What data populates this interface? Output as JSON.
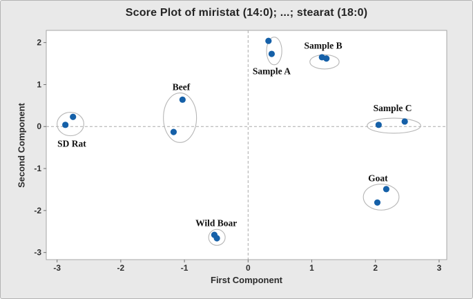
{
  "window": {
    "background": "#e9e9e9",
    "border_color": "#b3b3b3",
    "plot_background": "#ffffff",
    "plot_border_color": "#a6a6a6"
  },
  "chart_data": {
    "type": "scatter",
    "title": "Score Plot of miristat (14:0); ...; stearat (18:0)",
    "xlabel": "First Component",
    "ylabel": "Second Component",
    "xlim": [
      -3.17,
      3.12
    ],
    "ylim": [
      -3.17,
      2.29
    ],
    "x_ticks": [
      -3,
      -2,
      -1,
      0,
      1,
      2,
      3
    ],
    "y_ticks": [
      2,
      1,
      0,
      -1,
      -2,
      -3
    ],
    "grid": false,
    "legend": "none",
    "reference_lines": {
      "x": 0,
      "y": 0,
      "style": "dashed"
    },
    "point_color": "#1560a8",
    "ellipse_color": "#b5b5b5",
    "tick_color": "#707070",
    "tick_label_color": "#2e2e2e",
    "group_label_color": "#111111",
    "groups": [
      {
        "label": "SD Rat",
        "points": [
          [
            -2.75,
            0.23
          ],
          [
            -2.87,
            0.04
          ]
        ],
        "ellipse": {
          "cx": -2.79,
          "cy": 0.06,
          "rx": 0.21,
          "ry": 0.28
        },
        "label_pos": [
          -2.77,
          -0.41
        ]
      },
      {
        "label": "Beef",
        "points": [
          [
            -1.03,
            0.64
          ],
          [
            -1.17,
            -0.13
          ]
        ],
        "ellipse": {
          "cx": -1.07,
          "cy": 0.21,
          "rx": 0.26,
          "ry": 0.59
        },
        "label_pos": [
          -1.05,
          0.94
        ]
      },
      {
        "label": "Sample A",
        "points": [
          [
            0.32,
            2.04
          ],
          [
            0.37,
            1.73
          ]
        ],
        "ellipse": {
          "cx": 0.41,
          "cy": 1.8,
          "rx": 0.12,
          "ry": 0.33
        },
        "label_pos": [
          0.37,
          1.32
        ]
      },
      {
        "label": "Sample B",
        "points": [
          [
            1.16,
            1.65
          ],
          [
            1.23,
            1.62
          ]
        ],
        "ellipse": {
          "cx": 1.2,
          "cy": 1.54,
          "rx": 0.23,
          "ry": 0.17
        },
        "label_pos": [
          1.18,
          1.93
        ]
      },
      {
        "label": "Sample C",
        "points": [
          [
            2.05,
            0.04
          ],
          [
            2.46,
            0.12
          ]
        ],
        "ellipse": {
          "cx": 2.29,
          "cy": 0.02,
          "rx": 0.42,
          "ry": 0.18
        },
        "label_pos": [
          2.27,
          0.44
        ]
      },
      {
        "label": "Goat",
        "points": [
          [
            2.17,
            -1.49
          ],
          [
            2.03,
            -1.81
          ]
        ],
        "ellipse": {
          "cx": 2.09,
          "cy": -1.68,
          "rx": 0.28,
          "ry": 0.31
        },
        "label_pos": [
          2.04,
          -1.23
        ]
      },
      {
        "label": "Wild Boar",
        "points": [
          [
            -0.53,
            -2.58
          ],
          [
            -0.49,
            -2.66
          ]
        ],
        "ellipse": {
          "cx": -0.49,
          "cy": -2.64,
          "rx": 0.13,
          "ry": 0.19
        },
        "label_pos": [
          -0.5,
          -2.3
        ]
      }
    ]
  }
}
